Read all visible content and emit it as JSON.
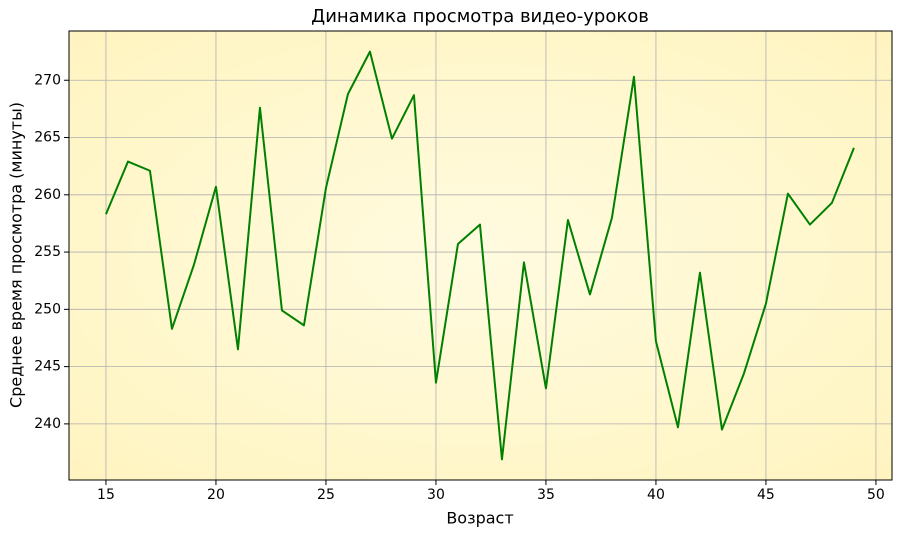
{
  "chart_data": {
    "type": "line",
    "title": "Динамика просмотра видео-уроков",
    "x_label": "Возраст",
    "y_label": "Среднее время просмотра (минуты)",
    "x": [
      15,
      16,
      17,
      18,
      19,
      20,
      21,
      22,
      23,
      24,
      25,
      26,
      27,
      28,
      29,
      30,
      31,
      32,
      33,
      34,
      35,
      36,
      37,
      38,
      39,
      40,
      41,
      42,
      43,
      44,
      45,
      46,
      47,
      48,
      49
    ],
    "series": [
      {
        "name": "Среднее время просмотра",
        "color": "#008000",
        "values": [
          258.3,
          262.9,
          262.1,
          248.3,
          253.9,
          260.7,
          246.5,
          267.6,
          249.9,
          248.6,
          260.6,
          268.8,
          272.5,
          264.9,
          268.7,
          243.6,
          255.7,
          257.4,
          236.9,
          254.1,
          243.1,
          257.8,
          251.3,
          258.0,
          270.3,
          247.2,
          239.7,
          253.2,
          239.5,
          244.4,
          250.5,
          260.1,
          257.4,
          259.3,
          264.1
        ]
      }
    ],
    "xlim": [
      13.32,
      50.73
    ],
    "xticks": [
      15,
      20,
      25,
      30,
      35,
      40,
      45,
      50
    ],
    "ylim": [
      235.1,
      274.3
    ],
    "yticks": [
      240,
      245,
      250,
      255,
      260,
      265,
      270
    ],
    "grid": true,
    "background": "#fff6c8"
  }
}
